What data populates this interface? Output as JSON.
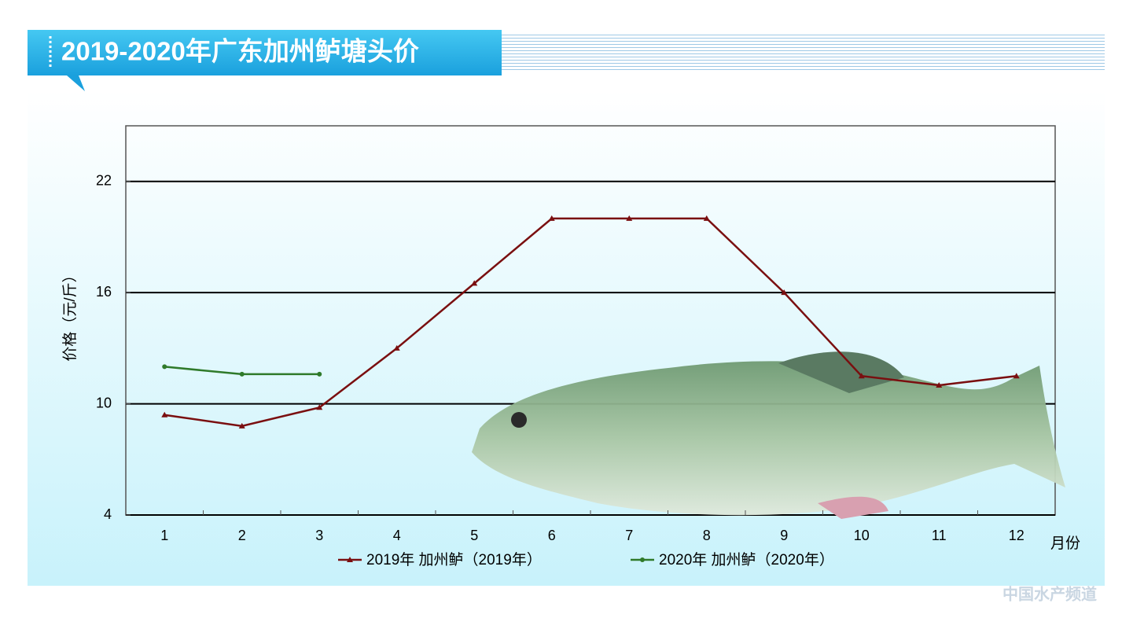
{
  "chart_data": {
    "type": "line",
    "title": "2019-2020年广东加州鲈塘头价",
    "y_label": "价格（元/斤）",
    "x_label": "月份",
    "categories": [
      "1",
      "2",
      "3",
      "4",
      "5",
      "6",
      "7",
      "8",
      "9",
      "10",
      "11",
      "12"
    ],
    "series": [
      {
        "name": "2019年 加州鲈（2019年）",
        "color": "#7a0f10",
        "marker": "triangle",
        "values": [
          9.4,
          8.8,
          9.8,
          13.0,
          16.5,
          20,
          20,
          20,
          16,
          11.5,
          11.0,
          11.5
        ]
      },
      {
        "name": "2020年 加州鲈（2020年）",
        "color": "#2f7a2a",
        "marker": "circle",
        "values": [
          12.0,
          11.6,
          11.6,
          null,
          null,
          null,
          null,
          null,
          null,
          null,
          null,
          null
        ]
      }
    ],
    "ylim": [
      4,
      25
    ],
    "yticks": [
      4,
      10,
      16,
      22
    ],
    "grid": true,
    "watermark": "中国水产频道"
  }
}
